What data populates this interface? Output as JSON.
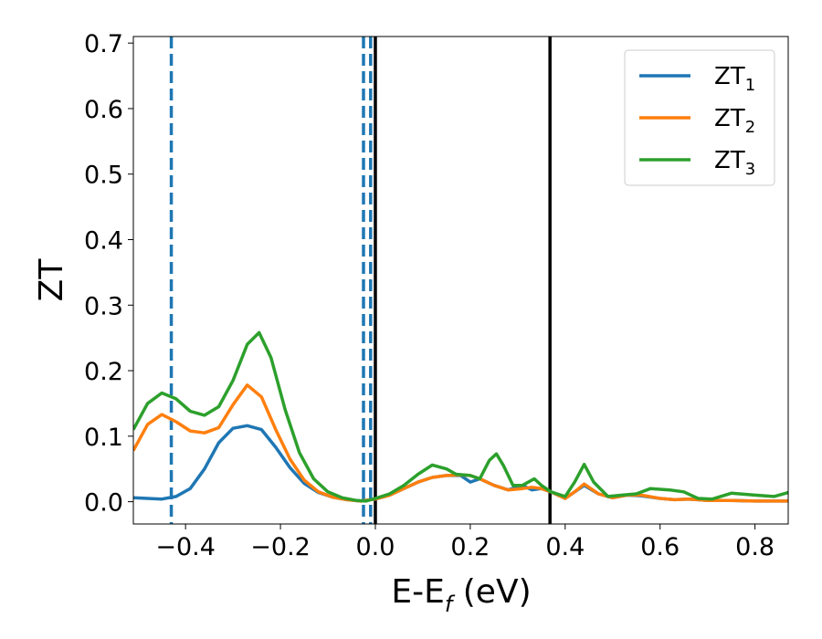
{
  "chart_data": {
    "type": "line",
    "xlabel": {
      "main": "E-E",
      "sub": "f",
      "tail": " (eV)"
    },
    "ylabel": "ZT",
    "xlim": [
      -0.51,
      0.87
    ],
    "ylim": [
      -0.034,
      0.71
    ],
    "xticks": [
      -0.4,
      -0.2,
      0.0,
      0.2,
      0.4,
      0.6,
      0.8
    ],
    "xtick_labels": [
      "−0.4",
      "−0.2",
      "0.0",
      "0.2",
      "0.4",
      "0.6",
      "0.8"
    ],
    "yticks": [
      0.0,
      0.1,
      0.2,
      0.3,
      0.4,
      0.5,
      0.6,
      0.7
    ],
    "ytick_labels": [
      "0.0",
      "0.1",
      "0.2",
      "0.3",
      "0.4",
      "0.5",
      "0.6",
      "0.7"
    ],
    "grid": false,
    "legend_position": "top-right",
    "vlines": [
      {
        "x": -0.43,
        "style": "dashed",
        "color": "#1f77b4"
      },
      {
        "x": -0.025,
        "style": "dashed",
        "color": "#1f77b4"
      },
      {
        "x": -0.01,
        "style": "dashed",
        "color": "#1f77b4"
      },
      {
        "x": 0.0,
        "style": "solid",
        "color": "#000000"
      },
      {
        "x": 0.368,
        "style": "solid",
        "color": "#000000"
      }
    ],
    "series": [
      {
        "label_main": "ZT",
        "label_sub": "1",
        "color": "#1f77b4",
        "points": [
          [
            -0.51,
            0.006
          ],
          [
            -0.48,
            0.005
          ],
          [
            -0.45,
            0.004
          ],
          [
            -0.42,
            0.008
          ],
          [
            -0.39,
            0.02
          ],
          [
            -0.36,
            0.05
          ],
          [
            -0.33,
            0.09
          ],
          [
            -0.3,
            0.112
          ],
          [
            -0.27,
            0.116
          ],
          [
            -0.24,
            0.11
          ],
          [
            -0.21,
            0.083
          ],
          [
            -0.18,
            0.052
          ],
          [
            -0.15,
            0.028
          ],
          [
            -0.12,
            0.014
          ],
          [
            -0.09,
            0.007
          ],
          [
            -0.06,
            0.003
          ],
          [
            -0.03,
            0.001
          ],
          [
            0.0,
            0.004
          ],
          [
            0.03,
            0.01
          ],
          [
            0.06,
            0.02
          ],
          [
            0.09,
            0.03
          ],
          [
            0.12,
            0.037
          ],
          [
            0.15,
            0.04
          ],
          [
            0.18,
            0.04
          ],
          [
            0.2,
            0.03
          ],
          [
            0.22,
            0.035
          ],
          [
            0.25,
            0.025
          ],
          [
            0.28,
            0.018
          ],
          [
            0.31,
            0.025
          ],
          [
            0.33,
            0.018
          ],
          [
            0.35,
            0.02
          ],
          [
            0.37,
            0.015
          ],
          [
            0.4,
            0.005
          ],
          [
            0.42,
            0.015
          ],
          [
            0.44,
            0.025
          ],
          [
            0.47,
            0.012
          ],
          [
            0.5,
            0.006
          ],
          [
            0.53,
            0.01
          ],
          [
            0.56,
            0.009
          ],
          [
            0.6,
            0.005
          ],
          [
            0.63,
            0.003
          ],
          [
            0.66,
            0.004
          ],
          [
            0.7,
            0.002
          ],
          [
            0.75,
            0.002
          ],
          [
            0.8,
            0.001
          ],
          [
            0.87,
            0.001
          ]
        ]
      },
      {
        "label_main": "ZT",
        "label_sub": "2",
        "color": "#ff7f0e",
        "points": [
          [
            -0.51,
            0.078
          ],
          [
            -0.48,
            0.118
          ],
          [
            -0.45,
            0.133
          ],
          [
            -0.42,
            0.122
          ],
          [
            -0.39,
            0.108
          ],
          [
            -0.36,
            0.105
          ],
          [
            -0.33,
            0.113
          ],
          [
            -0.3,
            0.148
          ],
          [
            -0.27,
            0.178
          ],
          [
            -0.24,
            0.16
          ],
          [
            -0.21,
            0.11
          ],
          [
            -0.18,
            0.065
          ],
          [
            -0.15,
            0.033
          ],
          [
            -0.12,
            0.015
          ],
          [
            -0.09,
            0.007
          ],
          [
            -0.06,
            0.003
          ],
          [
            -0.03,
            0.001
          ],
          [
            0.0,
            0.004
          ],
          [
            0.03,
            0.01
          ],
          [
            0.06,
            0.02
          ],
          [
            0.09,
            0.03
          ],
          [
            0.12,
            0.037
          ],
          [
            0.15,
            0.04
          ],
          [
            0.18,
            0.041
          ],
          [
            0.2,
            0.04
          ],
          [
            0.22,
            0.035
          ],
          [
            0.25,
            0.025
          ],
          [
            0.28,
            0.018
          ],
          [
            0.31,
            0.02
          ],
          [
            0.33,
            0.022
          ],
          [
            0.35,
            0.02
          ],
          [
            0.37,
            0.015
          ],
          [
            0.4,
            0.005
          ],
          [
            0.42,
            0.015
          ],
          [
            0.44,
            0.027
          ],
          [
            0.47,
            0.012
          ],
          [
            0.5,
            0.006
          ],
          [
            0.53,
            0.01
          ],
          [
            0.56,
            0.01
          ],
          [
            0.6,
            0.005
          ],
          [
            0.63,
            0.003
          ],
          [
            0.66,
            0.004
          ],
          [
            0.7,
            0.002
          ],
          [
            0.75,
            0.002
          ],
          [
            0.8,
            0.001
          ],
          [
            0.87,
            0.001
          ]
        ]
      },
      {
        "label_main": "ZT",
        "label_sub": "3",
        "color": "#2ca02c",
        "points": [
          [
            -0.51,
            0.11
          ],
          [
            -0.48,
            0.15
          ],
          [
            -0.45,
            0.166
          ],
          [
            -0.42,
            0.157
          ],
          [
            -0.39,
            0.138
          ],
          [
            -0.36,
            0.132
          ],
          [
            -0.33,
            0.145
          ],
          [
            -0.3,
            0.185
          ],
          [
            -0.27,
            0.24
          ],
          [
            -0.245,
            0.258
          ],
          [
            -0.22,
            0.22
          ],
          [
            -0.19,
            0.14
          ],
          [
            -0.16,
            0.075
          ],
          [
            -0.13,
            0.035
          ],
          [
            -0.1,
            0.015
          ],
          [
            -0.07,
            0.006
          ],
          [
            -0.04,
            0.002
          ],
          [
            -0.02,
            0.001
          ],
          [
            0.0,
            0.005
          ],
          [
            0.03,
            0.012
          ],
          [
            0.06,
            0.025
          ],
          [
            0.09,
            0.042
          ],
          [
            0.12,
            0.056
          ],
          [
            0.15,
            0.05
          ],
          [
            0.17,
            0.042
          ],
          [
            0.2,
            0.04
          ],
          [
            0.22,
            0.035
          ],
          [
            0.24,
            0.063
          ],
          [
            0.255,
            0.073
          ],
          [
            0.27,
            0.055
          ],
          [
            0.29,
            0.025
          ],
          [
            0.31,
            0.025
          ],
          [
            0.335,
            0.035
          ],
          [
            0.35,
            0.025
          ],
          [
            0.37,
            0.015
          ],
          [
            0.4,
            0.008
          ],
          [
            0.42,
            0.03
          ],
          [
            0.44,
            0.057
          ],
          [
            0.46,
            0.03
          ],
          [
            0.49,
            0.008
          ],
          [
            0.52,
            0.01
          ],
          [
            0.55,
            0.012
          ],
          [
            0.58,
            0.02
          ],
          [
            0.62,
            0.018
          ],
          [
            0.65,
            0.015
          ],
          [
            0.68,
            0.005
          ],
          [
            0.71,
            0.004
          ],
          [
            0.75,
            0.013
          ],
          [
            0.8,
            0.01
          ],
          [
            0.84,
            0.008
          ],
          [
            0.87,
            0.014
          ]
        ]
      }
    ]
  }
}
